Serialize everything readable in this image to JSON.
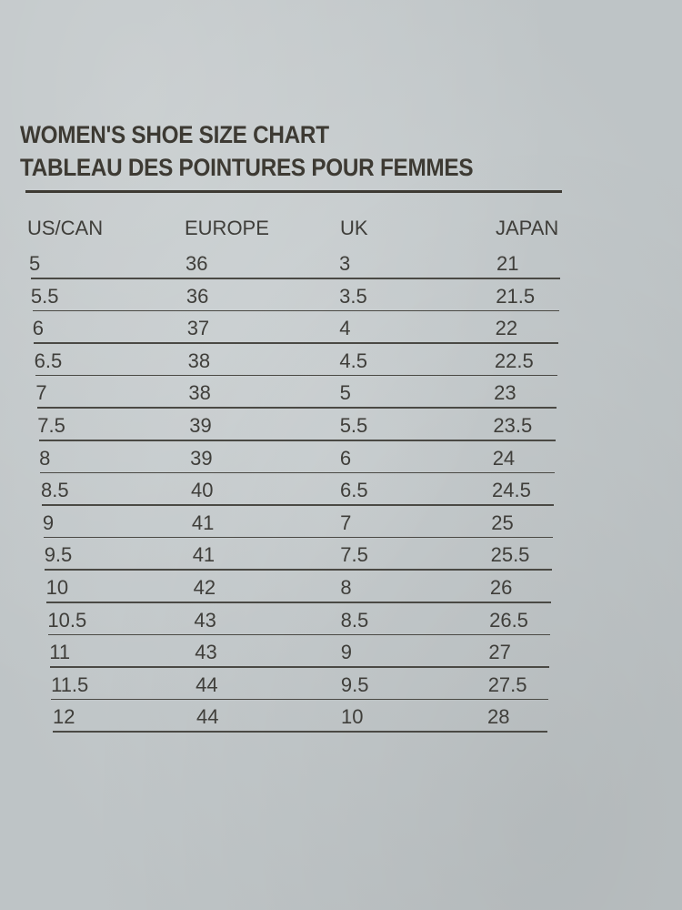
{
  "header": {
    "title_en": "WOMEN'S SHOE SIZE CHART",
    "title_fr": "TABLEAU DES POINTURES POUR FEMMES"
  },
  "table": {
    "columns": [
      "US/CAN",
      "EUROPE",
      "UK",
      "JAPAN"
    ],
    "rows": [
      [
        "5",
        "36",
        "3",
        "21"
      ],
      [
        "5.5",
        "36",
        "3.5",
        "21.5"
      ],
      [
        "6",
        "37",
        "4",
        "22"
      ],
      [
        "6.5",
        "38",
        "4.5",
        "22.5"
      ],
      [
        "7",
        "38",
        "5",
        "23"
      ],
      [
        "7.5",
        "39",
        "5.5",
        "23.5"
      ],
      [
        "8",
        "39",
        "6",
        "24"
      ],
      [
        "8.5",
        "40",
        "6.5",
        "24.5"
      ],
      [
        "9",
        "41",
        "7",
        "25"
      ],
      [
        "9.5",
        "41",
        "7.5",
        "25.5"
      ],
      [
        "10",
        "42",
        "8",
        "26"
      ],
      [
        "10.5",
        "43",
        "8.5",
        "26.5"
      ],
      [
        "11",
        "43",
        "9",
        "27"
      ],
      [
        "11.5",
        "44",
        "9.5",
        "27.5"
      ],
      [
        "12",
        "44",
        "10",
        "28"
      ]
    ]
  }
}
